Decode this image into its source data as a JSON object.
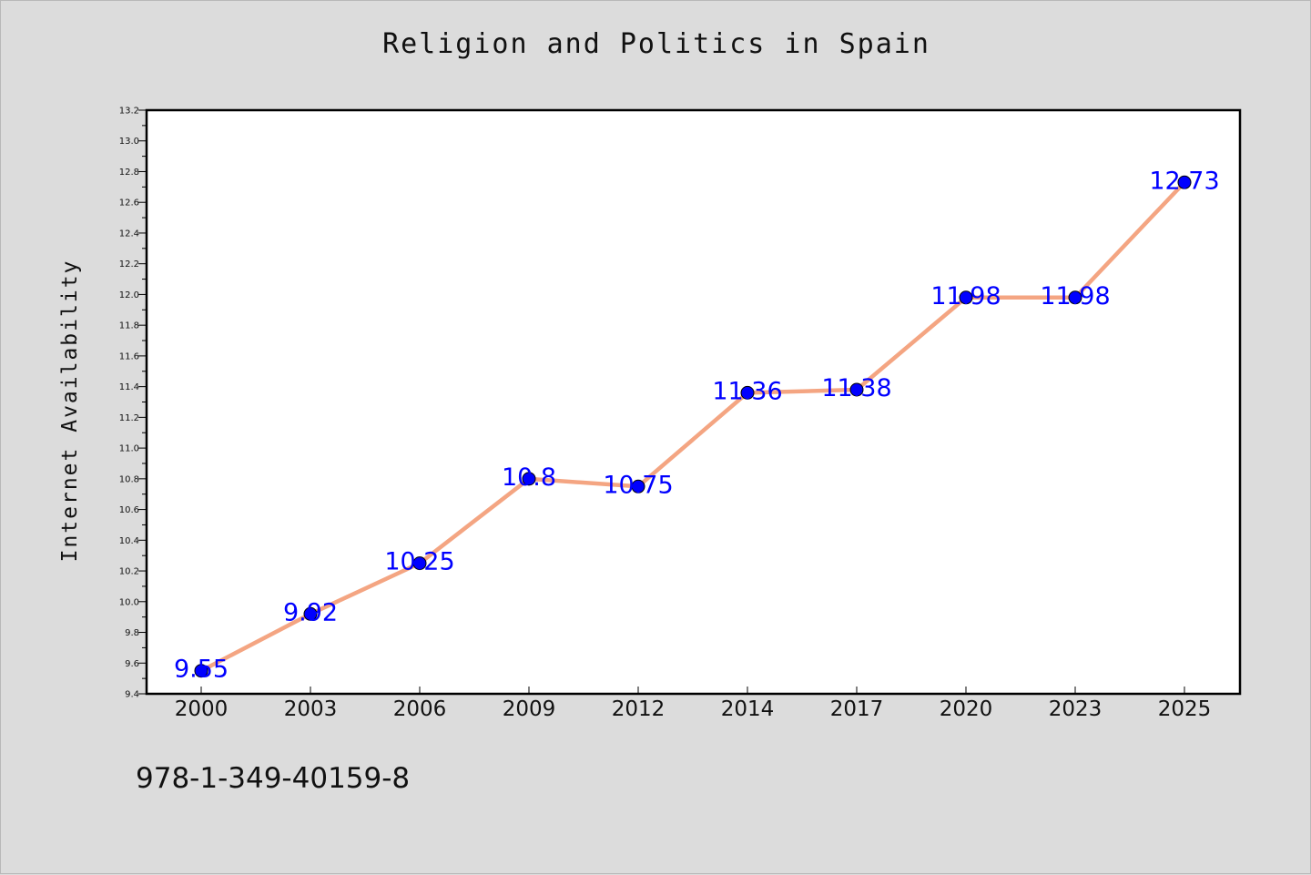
{
  "title": "Religion and Politics in Spain",
  "footer_text": "978-1-349-40159-8",
  "colors": {
    "background": "#dcdcdc",
    "plot_background": "#ffffff",
    "line": "#f4a582",
    "marker": "#0000ff",
    "data_label": "#0000ff"
  },
  "chart_data": {
    "type": "line",
    "title": "Religion and Politics in Spain",
    "xlabel": "",
    "ylabel": "Internet Availability",
    "categories": [
      "2000",
      "2003",
      "2006",
      "2009",
      "2012",
      "2014",
      "2017",
      "2020",
      "2023",
      "2025"
    ],
    "values": [
      9.55,
      9.92,
      10.25,
      10.8,
      10.75,
      11.36,
      11.38,
      11.98,
      11.98,
      12.73
    ],
    "data_labels": [
      "9.55",
      "9.92",
      "10.25",
      "10.8",
      "10.75",
      "11.36",
      "11.38",
      "11.98",
      "11.98",
      "12.73"
    ],
    "ylim": [
      9.4,
      13.2
    ],
    "yticks": [
      "9.4",
      "9.6",
      "9.8",
      "10.0",
      "10.2",
      "10.4",
      "10.6",
      "10.8",
      "11.0",
      "11.2",
      "11.4",
      "11.6",
      "11.8",
      "12.0",
      "12.2",
      "12.4",
      "12.6",
      "12.8",
      "13.0",
      "13.2"
    ],
    "grid": false,
    "legend": "none"
  }
}
